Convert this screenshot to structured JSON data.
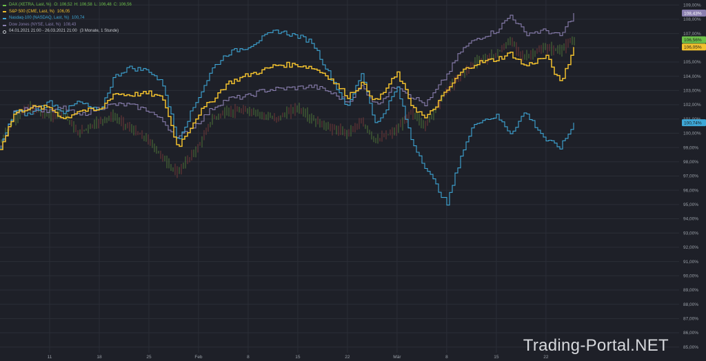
{
  "legend": {
    "dax_label": "DAX (XETRA, Last, %)",
    "dax_ohlc": [
      "O: 106,52",
      "H: 106,58",
      "L: 106,48",
      "C: 106,56"
    ],
    "sp_label": "S&P 500 (CME, Last, %)",
    "sp_value": "106,05",
    "nasdaq_label": "Nasdaq-100 (NASDAQ, Last, %)",
    "nasdaq_value": "100,74",
    "dow_label": "Dow Jones (NYSE, Last, %)",
    "dow_value": "108,43",
    "period": "04.01.2021 21:00 - 26.03.2021 21:00",
    "period_detail": "(3 Monate, 1 Stunde)"
  },
  "watermark": "Trading-Portal.NET",
  "colors": {
    "background": "#1e2028",
    "grid": "#2b2e37",
    "dax": "#6cc04a",
    "sp500": "#f2c12e",
    "nasdaq": "#3ea8d8",
    "dow": "#8a7fb0",
    "dax_candle_up": "#5e8f3f",
    "dax_candle_down": "#8f3f3f"
  },
  "chart_data": {
    "type": "line",
    "x_type": "date",
    "x_ticks": [
      "11",
      "18",
      "25",
      "Feb",
      "8",
      "15",
      "22",
      "Mär",
      "8",
      "15",
      "22"
    ],
    "y_ticks": [
      "85,00%",
      "86,00%",
      "87,00%",
      "88,00%",
      "89,00%",
      "90,00%",
      "91,00%",
      "92,00%",
      "93,00%",
      "94,00%",
      "95,00%",
      "96,00%",
      "97,00%",
      "98,00%",
      "99,00%",
      "100,00%",
      "101,00%",
      "102,00%",
      "103,00%",
      "104,00%",
      "105,00%",
      "106,00%",
      "107,00%",
      "108,00%",
      "109,00%"
    ],
    "ylim": [
      84.6,
      109.35
    ],
    "last_value_badges": [
      "108,43%",
      "106,56%",
      "106,05%",
      "100,74%"
    ],
    "x": [
      "2021-01-04",
      "2021-01-06",
      "2021-01-08",
      "2021-01-11",
      "2021-01-13",
      "2021-01-15",
      "2021-01-18",
      "2021-01-20",
      "2021-01-22",
      "2021-01-25",
      "2021-01-27",
      "2021-01-29",
      "2021-02-01",
      "2021-02-03",
      "2021-02-05",
      "2021-02-08",
      "2021-02-10",
      "2021-02-12",
      "2021-02-15",
      "2021-02-17",
      "2021-02-19",
      "2021-02-22",
      "2021-02-24",
      "2021-02-26",
      "2021-03-01",
      "2021-03-03",
      "2021-03-05",
      "2021-03-08",
      "2021-03-10",
      "2021-03-12",
      "2021-03-15",
      "2021-03-17",
      "2021-03-19",
      "2021-03-22",
      "2021-03-24",
      "2021-03-26"
    ],
    "series": [
      {
        "name": "DAX (XETRA, Last, %)",
        "color": "#6cc04a",
        "values": [
          99.2,
          101.0,
          101.8,
          101.2,
          101.5,
          100.0,
          100.8,
          101.2,
          100.5,
          99.5,
          98.3,
          97.2,
          99.0,
          101.0,
          101.5,
          101.6,
          101.3,
          101.0,
          101.8,
          101.0,
          100.5,
          100.0,
          100.8,
          99.5,
          100.2,
          101.5,
          100.5,
          103.0,
          104.0,
          105.0,
          105.5,
          106.5,
          105.3,
          106.0,
          105.8,
          106.56
        ]
      },
      {
        "name": "S&P 500 (CME, Last, %)",
        "color": "#f2c12e",
        "values": [
          99.0,
          101.4,
          101.8,
          101.8,
          101.0,
          101.6,
          101.6,
          102.8,
          102.7,
          102.8,
          102.4,
          99.0,
          101.4,
          102.4,
          103.5,
          104.1,
          104.4,
          104.8,
          104.8,
          104.6,
          104.1,
          102.6,
          103.5,
          102.2,
          104.2,
          102.0,
          101.0,
          103.0,
          104.3,
          104.9,
          105.2,
          105.6,
          104.7,
          105.4,
          103.5,
          106.05
        ]
      },
      {
        "name": "Nasdaq-100 (NASDAQ, Last, %)",
        "color": "#3ea8d8",
        "values": [
          99.0,
          101.6,
          101.3,
          102.2,
          101.5,
          102.2,
          101.5,
          103.9,
          104.6,
          104.4,
          103.4,
          99.5,
          102.6,
          104.6,
          105.6,
          106.1,
          106.7,
          107.2,
          106.8,
          106.4,
          104.5,
          101.8,
          104.3,
          100.5,
          103.2,
          99.5,
          97.6,
          95.0,
          98.5,
          100.8,
          101.2,
          100.0,
          101.5,
          99.5,
          99.0,
          100.74
        ]
      },
      {
        "name": "Dow Jones (NYSE, Last, %)",
        "color": "#8a7fb0",
        "values": [
          99.0,
          101.5,
          101.9,
          101.5,
          101.8,
          101.2,
          101.8,
          102.0,
          102.0,
          101.6,
          100.8,
          99.6,
          100.8,
          101.8,
          102.4,
          102.6,
          103.0,
          103.1,
          103.2,
          103.3,
          103.0,
          102.2,
          103.3,
          102.0,
          103.4,
          102.6,
          102.0,
          104.1,
          105.8,
          106.6,
          107.2,
          108.3,
          107.0,
          107.2,
          106.8,
          108.43
        ]
      }
    ]
  }
}
